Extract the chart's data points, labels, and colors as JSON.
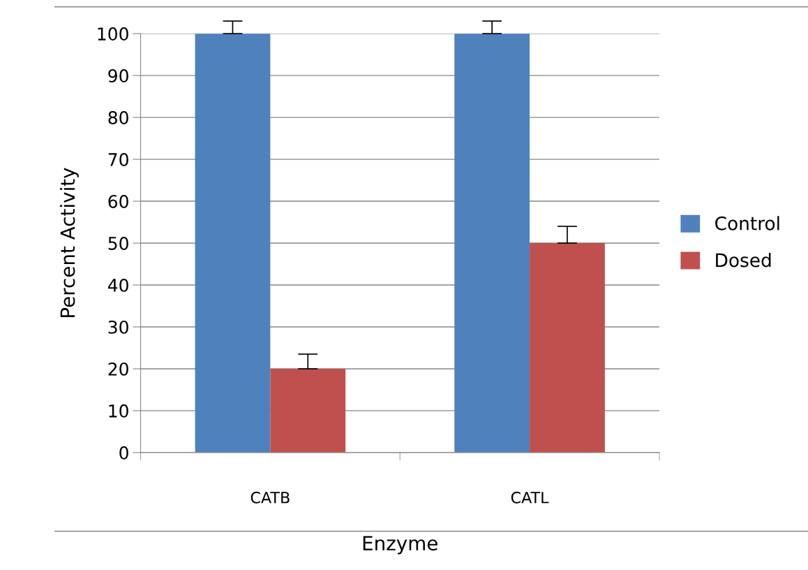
{
  "chart_data": {
    "type": "bar",
    "xlabel": "Enzyme",
    "ylabel": "Percent Activity",
    "categories": [
      "CATB",
      "CATL"
    ],
    "series": [
      {
        "name": "Control",
        "color": "#4f81bd",
        "values": [
          100,
          100
        ],
        "errors": [
          [
            100,
            103
          ],
          [
            100,
            103
          ]
        ]
      },
      {
        "name": "Dosed",
        "color": "#c0504d",
        "values": [
          20,
          50
        ],
        "errors": [
          [
            20,
            23.5
          ],
          [
            50,
            54
          ]
        ]
      }
    ],
    "ylim": [
      0,
      100
    ],
    "yticks": [
      0,
      10,
      20,
      30,
      40,
      50,
      60,
      70,
      80,
      90,
      100
    ],
    "grid": "y",
    "legend": "right"
  }
}
